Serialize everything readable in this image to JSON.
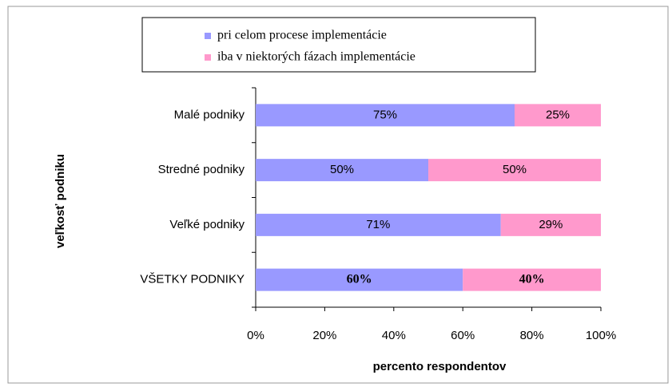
{
  "chart_data": {
    "type": "stacked-bar-horizontal",
    "categories": [
      "Malé podniky",
      "Stredné podniky",
      "Veľké podniky",
      "VŠETKY PODNIKY"
    ],
    "series": [
      {
        "name": "pri celom procese implementácie",
        "color": "#9999ff",
        "values": [
          75,
          50,
          71,
          60
        ],
        "value_labels": [
          "75%",
          "50%",
          "71%",
          "60%"
        ]
      },
      {
        "name": "iba v niektorých fázach implementácie",
        "color": "#ff99cc",
        "values": [
          25,
          50,
          29,
          40
        ],
        "value_labels": [
          "25%",
          "50%",
          "29%",
          "40%"
        ]
      }
    ],
    "xlabel": "percento respondentov",
    "ylabel": "veľkosť podniku",
    "xlim": [
      0,
      100
    ],
    "xticks": [
      {
        "value": 0,
        "label": "0%"
      },
      {
        "value": 20,
        "label": "20%"
      },
      {
        "value": 40,
        "label": "40%"
      },
      {
        "value": 60,
        "label": "60%"
      },
      {
        "value": 80,
        "label": "80%"
      },
      {
        "value": 100,
        "label": "100%"
      }
    ],
    "legend": "top"
  }
}
